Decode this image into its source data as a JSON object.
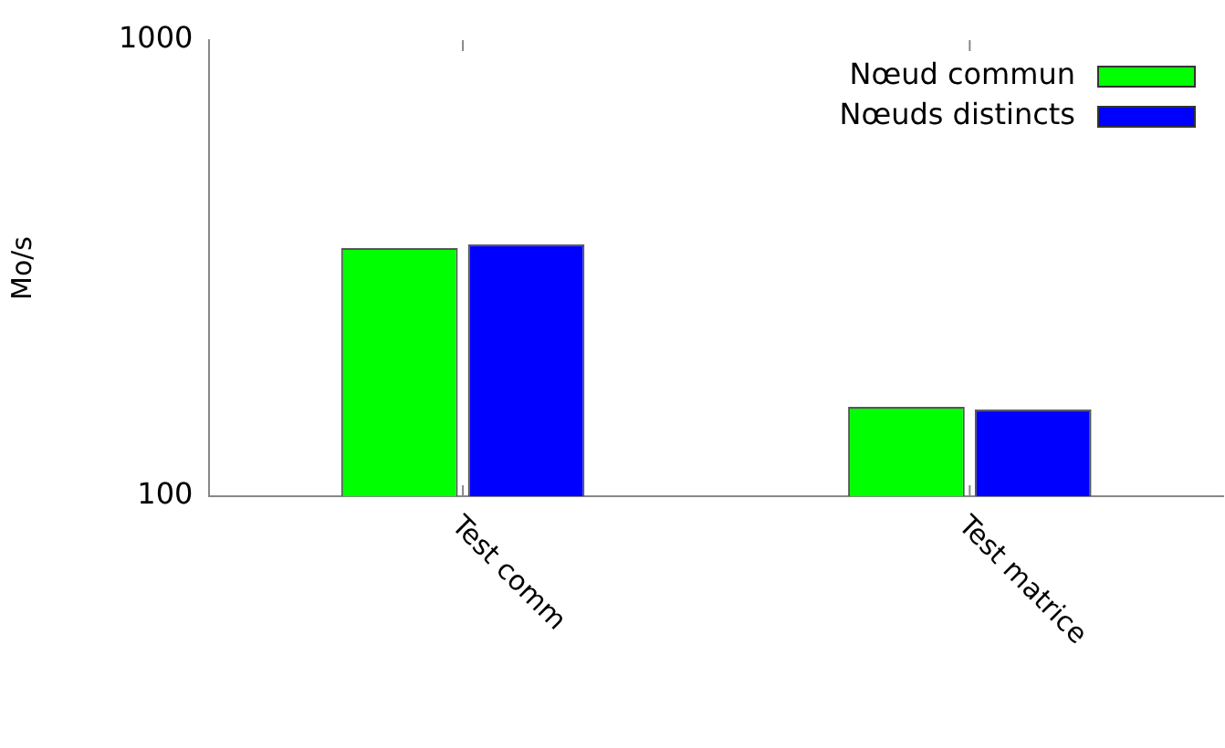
{
  "chart_data": {
    "type": "bar",
    "ylabel": "Mo/s",
    "categories": [
      "Test comm",
      "Test matrice"
    ],
    "series": [
      {
        "name": "Nœud commun",
        "color": "#00ff00",
        "values": [
          350,
          157
        ]
      },
      {
        "name": "Nœuds distincts",
        "color": "#0000ff",
        "values": [
          357,
          155
        ]
      }
    ],
    "log": true,
    "ylim": [
      100,
      1000
    ],
    "yticks": [
      100,
      1000
    ],
    "grid": false,
    "legend": "top right"
  }
}
